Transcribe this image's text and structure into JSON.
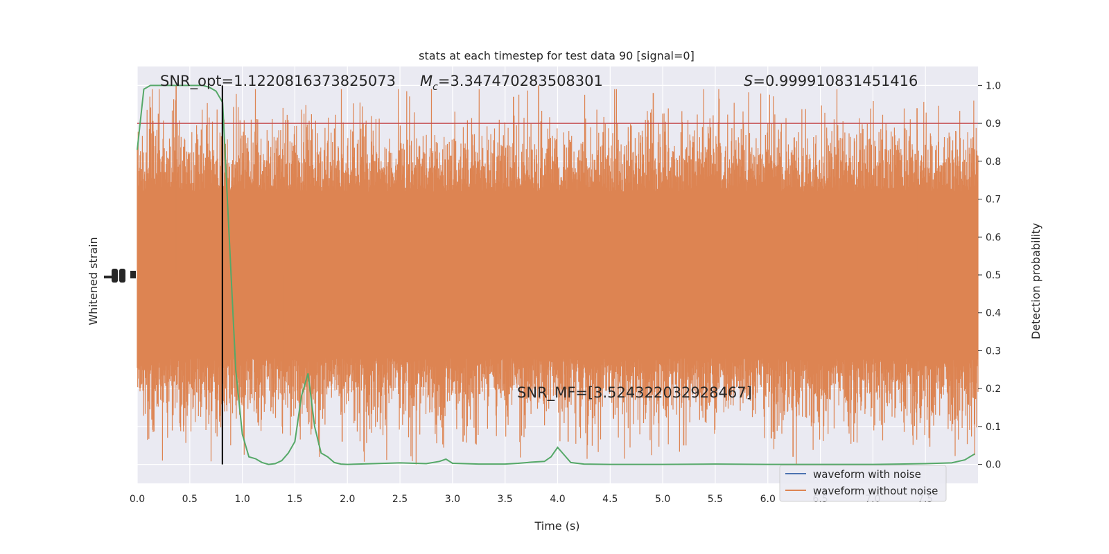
{
  "chart_data": {
    "type": "line",
    "title": "stats at each timestep for test data 90 [signal=0]",
    "xlabel": "Time (s)",
    "ylabel_left": "Whitened strain",
    "ylabel_right": "Detection probability",
    "xlim": [
      0.0,
      8.0
    ],
    "ylim_right": [
      -0.05,
      1.05
    ],
    "x_ticks": [
      "0.0",
      "0.5",
      "1.0",
      "1.5",
      "2.0",
      "2.5",
      "3.0",
      "3.5",
      "4.0",
      "4.5",
      "5.0",
      "5.5",
      "6.0",
      "6.5",
      "7.0",
      "7.5"
    ],
    "y_ticks_right": [
      "0.0",
      "0.1",
      "0.2",
      "0.3",
      "0.4",
      "0.5",
      "0.6",
      "0.7",
      "0.8",
      "0.9",
      "1.0"
    ],
    "grid": true,
    "legend_position": "lower-right",
    "threshold": {
      "value": 0.9,
      "color": "#c44e52"
    },
    "vline_time": 0.81,
    "annotations": {
      "snr_opt": "SNR_opt=1.1220816373825073",
      "mc_symbol": "M",
      "mc_sub": "c",
      "mc_value": "=3.347470283508301",
      "s_symbol": "S",
      "s_value": "=0.999910831451416",
      "snr_mf": "SNR_MF=[3.524322032928467]"
    },
    "series": [
      {
        "name": "waveform with noise",
        "color": "#4c72b0"
      },
      {
        "name": "waveform without noise",
        "color": "#dd8452",
        "band_center": 0.5,
        "band_halfwidth": 0.22
      },
      {
        "color": "#55a868",
        "x": [
          0.0,
          0.0625,
          0.125,
          0.25,
          0.375,
          0.5,
          0.625,
          0.6875,
          0.75,
          0.8125,
          0.875,
          0.9375,
          1.0,
          1.0625,
          1.125,
          1.1875,
          1.25,
          1.3125,
          1.375,
          1.4375,
          1.5,
          1.5625,
          1.625,
          1.6875,
          1.75,
          1.8125,
          1.875,
          1.9375,
          2.0,
          2.25,
          2.5,
          2.75,
          2.875,
          2.9375,
          3.0,
          3.25,
          3.5,
          3.625,
          3.75,
          3.875,
          3.9375,
          4.0,
          4.0625,
          4.125,
          4.25,
          4.5,
          5.0,
          5.5,
          6.0,
          6.5,
          7.0,
          7.25,
          7.5,
          7.75,
          7.875,
          7.97
        ],
        "y": [
          0.83,
          0.99,
          1.0,
          1.0,
          1.0,
          1.0,
          1.0,
          0.995,
          0.985,
          0.955,
          0.6,
          0.25,
          0.08,
          0.02,
          0.015,
          0.005,
          0.0,
          0.002,
          0.01,
          0.03,
          0.06,
          0.18,
          0.24,
          0.1,
          0.03,
          0.02,
          0.005,
          0.001,
          0.0,
          0.002,
          0.004,
          0.002,
          0.008,
          0.014,
          0.003,
          0.001,
          0.001,
          0.003,
          0.006,
          0.008,
          0.02,
          0.045,
          0.025,
          0.005,
          0.001,
          0.0,
          0.0,
          0.001,
          0.0,
          0.0,
          0.0,
          0.001,
          0.002,
          0.004,
          0.012,
          0.028
        ]
      }
    ],
    "spikes": [
      {
        "t": 0.37,
        "v": 1.0
      },
      {
        "t": 3.58,
        "v": 0.97
      },
      {
        "t": 3.82,
        "v": 1.0
      },
      {
        "t": 4.91,
        "v": 0.98
      },
      {
        "t": 7.42,
        "v": 0.94
      },
      {
        "t": 1.38,
        "v": 0.1
      },
      {
        "t": 1.95,
        "v": 0.06
      },
      {
        "t": 3.1,
        "v": 0.06
      },
      {
        "t": 4.1,
        "v": 0.06
      },
      {
        "t": 5.2,
        "v": 0.05
      },
      {
        "t": 6.24,
        "v": 0.02
      }
    ]
  }
}
